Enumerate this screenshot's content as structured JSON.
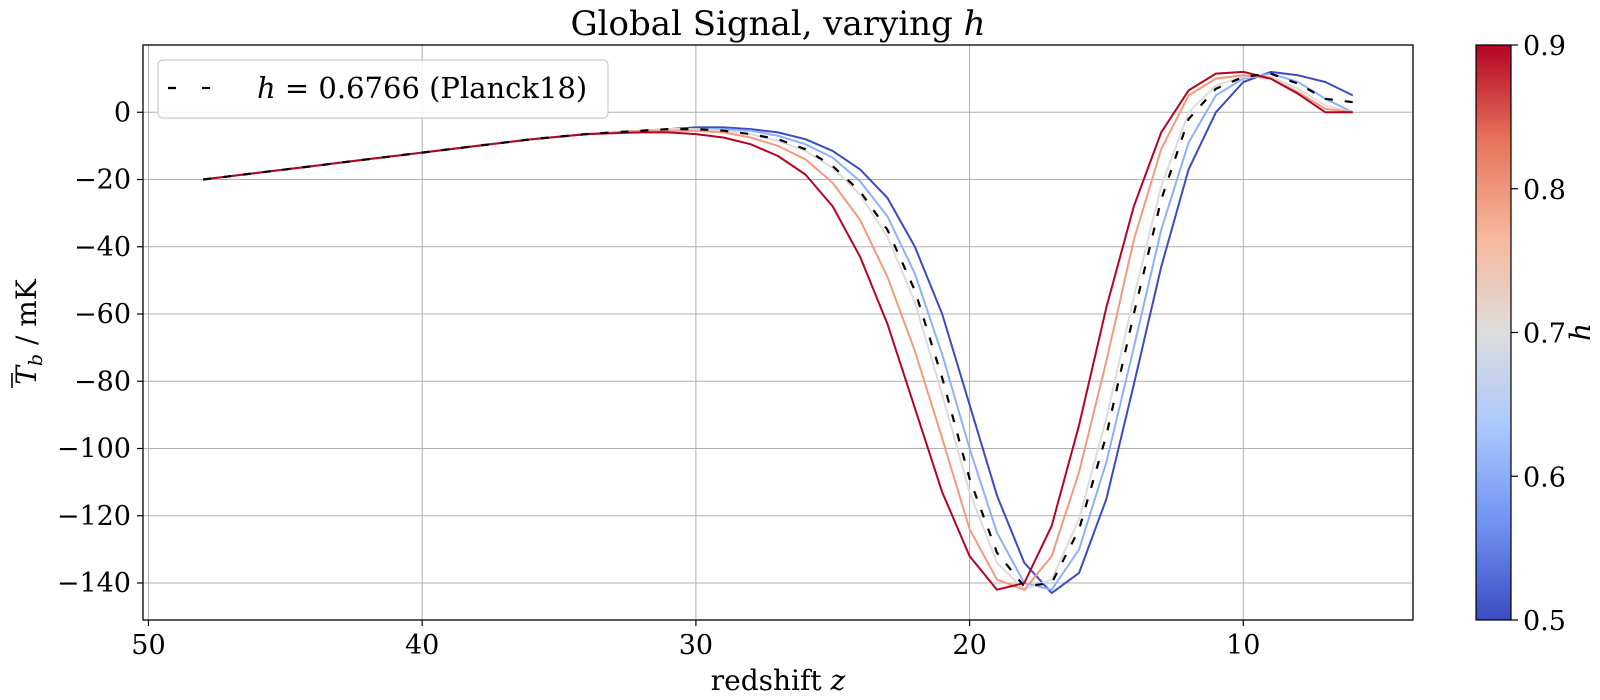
{
  "chart_data": {
    "type": "line",
    "title_prefix": "Global Signal, varying ",
    "title_var": "h",
    "xlabel_prefix": "redshift ",
    "xlabel_var": "z",
    "ylabel_sym": "T",
    "ylabel_sub": "b",
    "ylabel_unit": " / mK",
    "xlim": [
      50.2,
      3.8
    ],
    "ylim": [
      -151,
      20
    ],
    "xticks": [
      50,
      40,
      30,
      20,
      10
    ],
    "yticks": [
      0,
      -20,
      -40,
      -60,
      -80,
      -100,
      -120,
      -140
    ],
    "ytick_labels": [
      "0",
      "−20",
      "−40",
      "−60",
      "−80",
      "−100",
      "−120",
      "−140"
    ],
    "grid": true,
    "legend": {
      "placement": "top-left",
      "var": "h",
      "text": " = 0.6766 (Planck18)"
    },
    "colorbar": {
      "label": "h",
      "range": [
        0.5,
        0.9
      ],
      "ticks": [
        "0.5",
        "0.6",
        "0.7",
        "0.8",
        "0.9"
      ],
      "colormap": "coolwarm",
      "stops": [
        "#3b4cc0",
        "#6f92f3",
        "#aac7fd",
        "#dddddd",
        "#f7b89c",
        "#e7745b",
        "#b40426"
      ]
    },
    "series": [
      {
        "h": 0.5,
        "color": "#3b4cc0",
        "style": "solid",
        "x": [
          48,
          46,
          44,
          42,
          40,
          38,
          36,
          34,
          32,
          31,
          30,
          29,
          28,
          27,
          26,
          25,
          24,
          23,
          22,
          21,
          20,
          19,
          18,
          17,
          16,
          15,
          14,
          13,
          12,
          11,
          10,
          9,
          8,
          7,
          6
        ],
        "y": [
          -20,
          -18,
          -16,
          -14,
          -12,
          -10,
          -8,
          -6.5,
          -5.5,
          -5,
          -4.5,
          -4.5,
          -5,
          -6,
          -8,
          -11.5,
          -17,
          -25.5,
          -40,
          -60,
          -87,
          -114,
          -134,
          -143,
          -137,
          -115,
          -81,
          -46,
          -17,
          0,
          9,
          12,
          11,
          9,
          5
        ]
      },
      {
        "h": 0.6,
        "color": "#8db0fe",
        "style": "solid",
        "x": [
          48,
          46,
          44,
          42,
          40,
          38,
          36,
          34,
          32,
          31,
          30,
          29,
          28,
          27,
          26,
          25,
          24,
          23,
          22,
          21,
          20,
          19,
          18,
          17,
          16,
          15,
          14,
          13,
          12,
          11,
          10,
          9,
          8,
          7,
          6
        ],
        "y": [
          -20,
          -18,
          -16,
          -14,
          -12,
          -10,
          -8,
          -6.5,
          -5.5,
          -5,
          -5,
          -5,
          -5.5,
          -7,
          -9.5,
          -13.5,
          -20.5,
          -31,
          -48,
          -72,
          -100,
          -125,
          -140,
          -142,
          -130,
          -104,
          -70,
          -35,
          -9,
          5,
          10,
          11.5,
          9,
          4,
          0
        ]
      },
      {
        "h": 0.7,
        "color": "#dddcdc",
        "style": "solid",
        "x": [
          48,
          46,
          44,
          42,
          40,
          38,
          36,
          34,
          32,
          31,
          30,
          29,
          28,
          27,
          26,
          25,
          24,
          23,
          22,
          21,
          20,
          19,
          18,
          17,
          16,
          15,
          14,
          13,
          12,
          11,
          10,
          9,
          8,
          7,
          6
        ],
        "y": [
          -20,
          -18,
          -16,
          -14,
          -12,
          -10,
          -8,
          -6.5,
          -5.5,
          -5,
          -5,
          -5.5,
          -6.5,
          -8.5,
          -11.5,
          -16.5,
          -24.5,
          -37,
          -56.5,
          -84,
          -113,
          -134,
          -142,
          -139,
          -121,
          -91,
          -55,
          -22,
          0,
          8,
          10.5,
          10.5,
          7,
          2,
          0
        ]
      },
      {
        "h": 0.8,
        "color": "#f49a7b",
        "style": "solid",
        "x": [
          48,
          46,
          44,
          42,
          40,
          38,
          36,
          34,
          32,
          31,
          30,
          29,
          28,
          27,
          26,
          25,
          24,
          23,
          22,
          21,
          20,
          19,
          18,
          17,
          16,
          15,
          14,
          13,
          12,
          11,
          10,
          9,
          8,
          7,
          6
        ],
        "y": [
          -20,
          -18,
          -16,
          -14,
          -12,
          -10,
          -8,
          -6.5,
          -5.5,
          -5.5,
          -5.5,
          -6,
          -7.5,
          -10,
          -14,
          -21,
          -32,
          -49,
          -71,
          -97,
          -124,
          -139,
          -142,
          -132,
          -107,
          -74,
          -38,
          -11,
          5,
          10,
          11,
          10,
          6,
          1,
          0
        ]
      },
      {
        "h": 0.9,
        "color": "#b40426",
        "style": "solid",
        "x": [
          48,
          46,
          44,
          42,
          40,
          38,
          36,
          34,
          32,
          31,
          30,
          29,
          28,
          27,
          26,
          25,
          24,
          23,
          22,
          21,
          20,
          19,
          18,
          17,
          16,
          15,
          14,
          13,
          12,
          11,
          10,
          9,
          8,
          7,
          6
        ],
        "y": [
          -20,
          -18,
          -16,
          -14,
          -12,
          -10,
          -8,
          -6.5,
          -6,
          -6,
          -6.5,
          -7.5,
          -9.5,
          -13,
          -18.5,
          -28,
          -43,
          -63,
          -88,
          -113,
          -132,
          -142,
          -140,
          -123,
          -93,
          -58,
          -28,
          -6,
          6.5,
          11.5,
          12,
          10,
          5.5,
          0,
          0
        ]
      },
      {
        "h": 0.6766,
        "color": "#000000",
        "style": "dashed",
        "legend": true,
        "x": [
          48,
          46,
          44,
          42,
          40,
          38,
          36,
          34,
          32,
          31,
          30,
          29,
          28,
          27,
          26,
          25,
          24,
          23,
          22,
          21,
          20,
          19,
          18,
          17,
          16,
          15,
          14,
          13,
          12,
          11,
          10,
          9,
          8,
          7,
          6
        ],
        "y": [
          -20,
          -18,
          -16,
          -14,
          -12,
          -10,
          -8,
          -6.5,
          -5.5,
          -5,
          -5,
          -5.5,
          -6.5,
          -8,
          -11,
          -16,
          -23.5,
          -35,
          -53,
          -79,
          -109,
          -131,
          -141,
          -140,
          -124,
          -96,
          -60,
          -26,
          -2,
          7,
          10.5,
          11.5,
          8.5,
          4,
          3
        ]
      }
    ]
  }
}
